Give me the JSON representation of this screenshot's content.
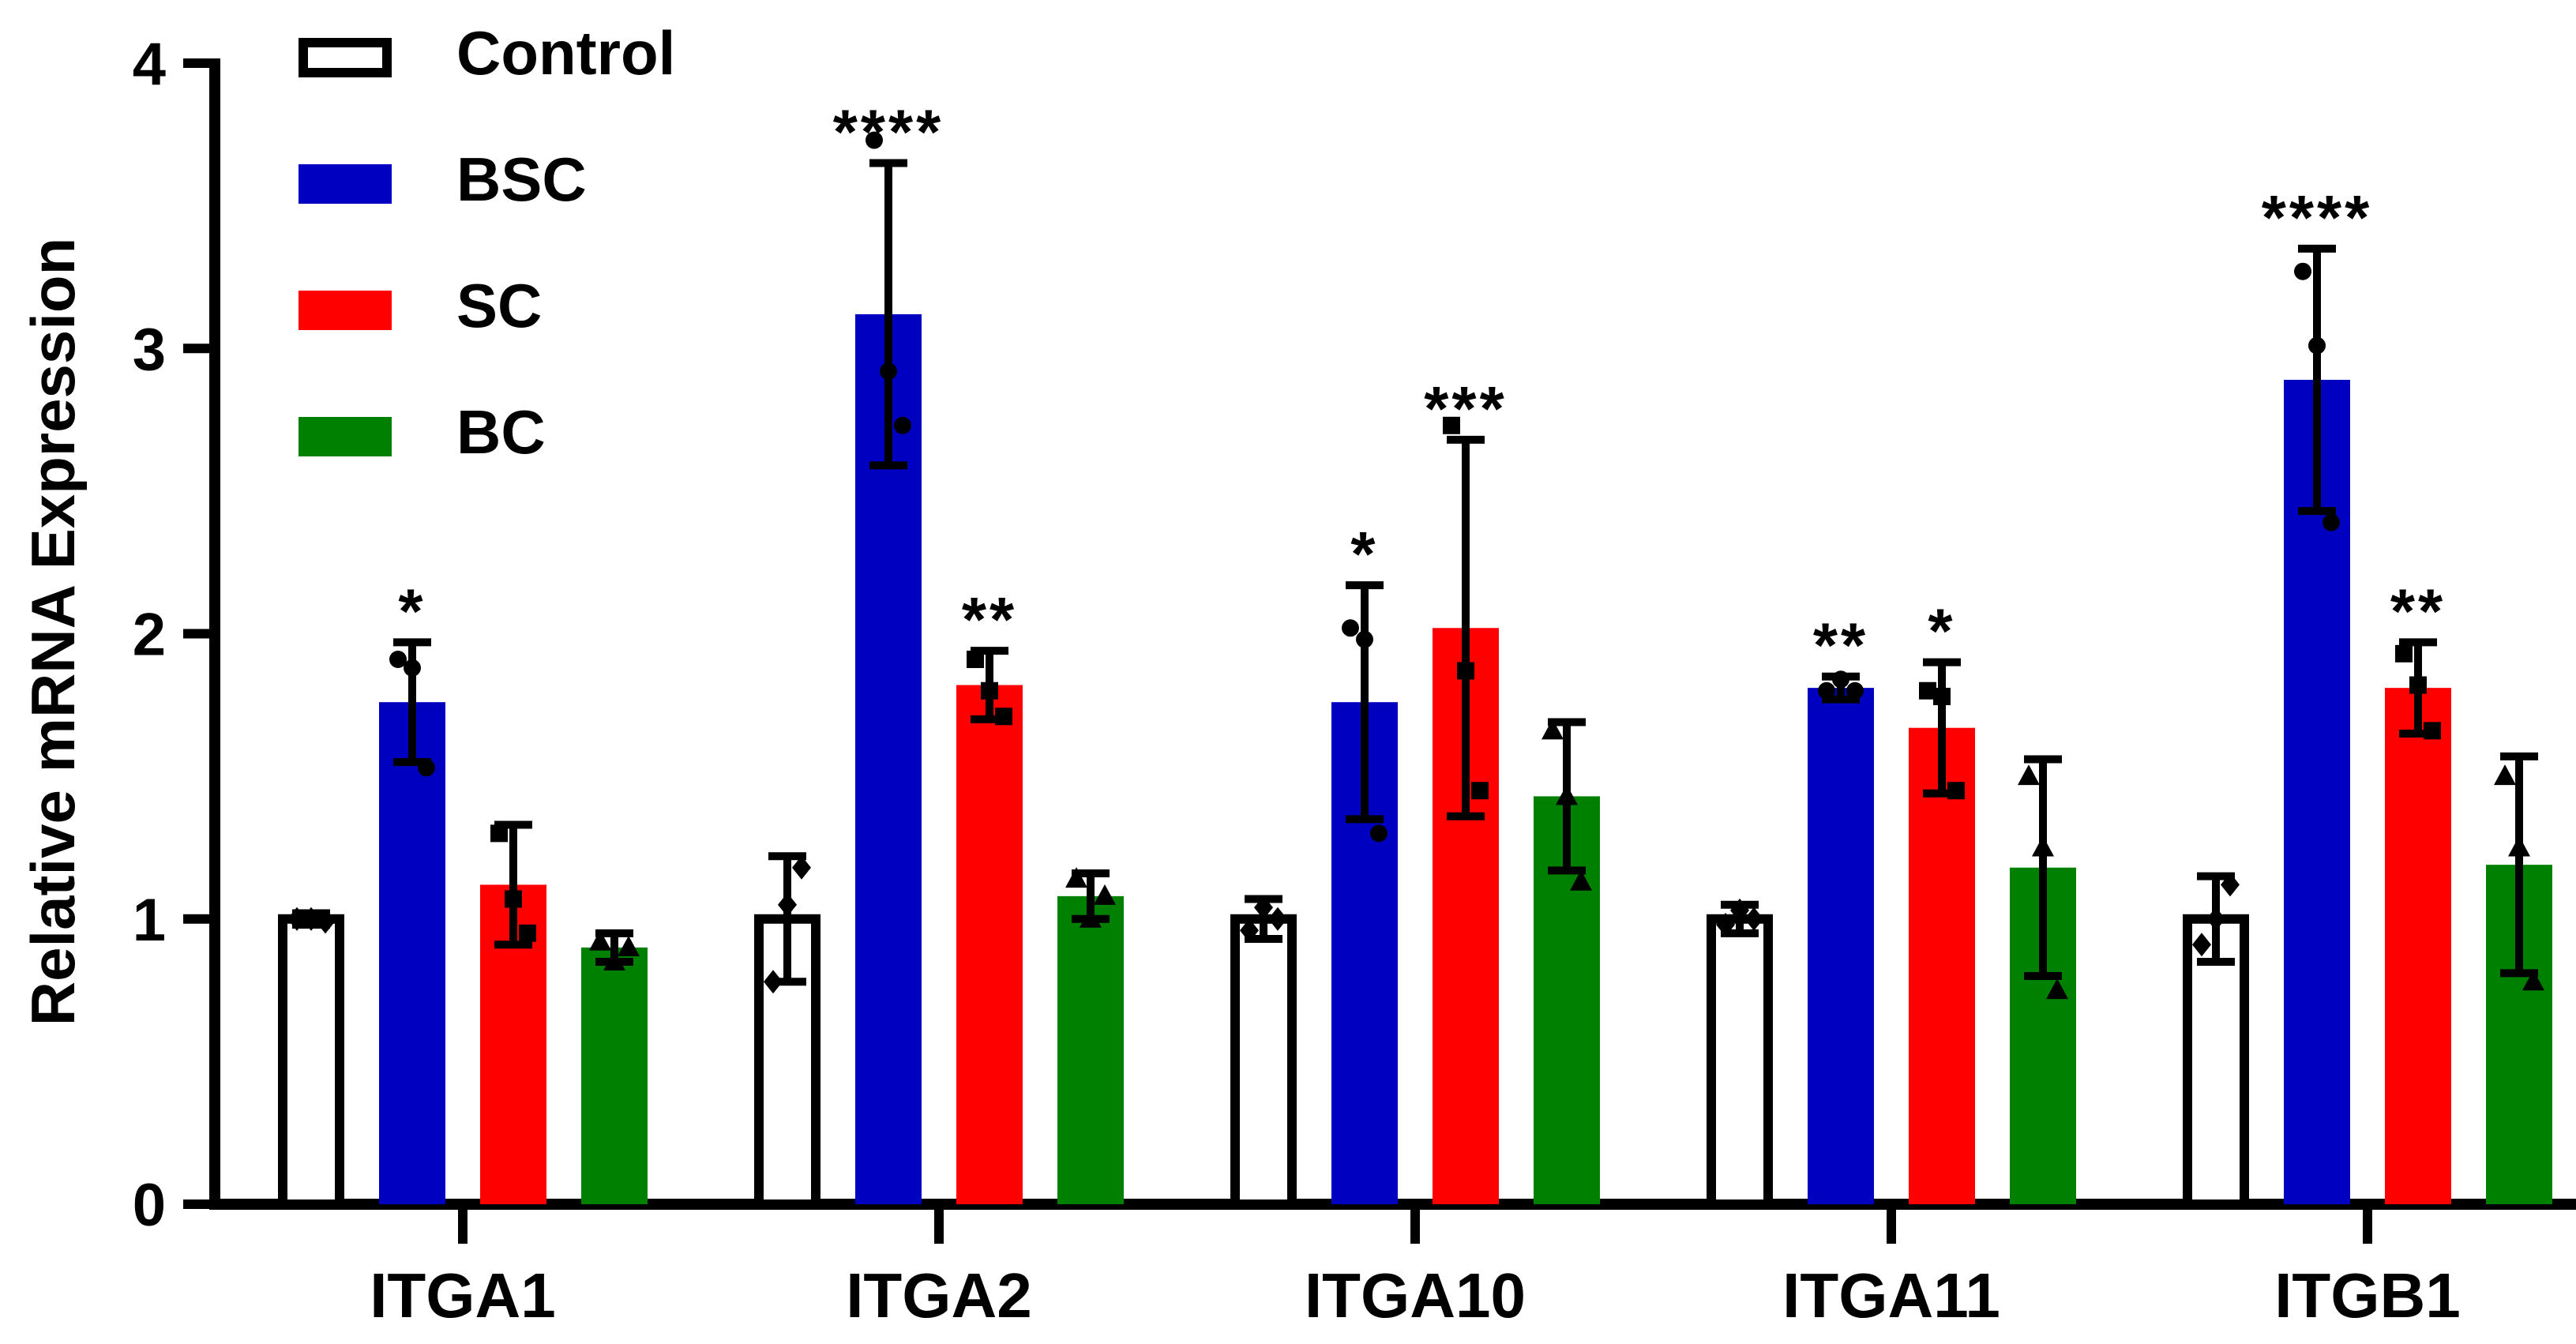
{
  "chart_data": {
    "type": "bar",
    "title": "",
    "xlabel": "",
    "ylabel": "Relative mRNA Expression",
    "ylim": [
      0,
      4
    ],
    "yticks": [
      "0",
      "1",
      "2",
      "3",
      "4"
    ],
    "grid": false,
    "legend_position": "top-left",
    "categories": [
      "ITGA1",
      "ITGA2",
      "ITGA10",
      "ITGA11",
      "ITGB1"
    ],
    "series": [
      {
        "name": "Control",
        "color": "#ffffff",
        "stroke": "#000000",
        "marker": "diamond",
        "values": [
          1.0,
          1.0,
          1.0,
          1.0,
          1.0
        ],
        "error": [
          0.02,
          0.22,
          0.07,
          0.05,
          0.15
        ],
        "points": [
          [
            1.0,
            1.0,
            0.99
          ],
          [
            0.78,
            1.05,
            1.18
          ],
          [
            0.96,
            1.04,
            1.0
          ],
          [
            0.98,
            1.03,
            1.0
          ],
          [
            0.91,
            1.0,
            1.12
          ]
        ],
        "significance": [
          "",
          "",
          "",
          "",
          ""
        ]
      },
      {
        "name": "BSC",
        "color": "#0000c0",
        "stroke": "#0000c0",
        "marker": "circle",
        "values": [
          1.76,
          3.12,
          1.76,
          1.81,
          2.89
        ],
        "error": [
          0.21,
          0.53,
          0.41,
          0.04,
          0.46
        ],
        "points": [
          [
            1.91,
            1.88,
            1.53
          ],
          [
            3.73,
            2.92,
            2.73
          ],
          [
            2.02,
            1.98,
            1.3
          ],
          [
            1.8,
            1.84,
            1.8
          ],
          [
            3.27,
            3.01,
            2.39
          ]
        ],
        "significance": [
          "*",
          "****",
          "*",
          "**",
          "****"
        ]
      },
      {
        "name": "SC",
        "color": "#ff0000",
        "stroke": "#ff0000",
        "marker": "square",
        "values": [
          1.12,
          1.82,
          2.02,
          1.67,
          1.81
        ],
        "error": [
          0.21,
          0.12,
          0.66,
          0.23,
          0.16
        ],
        "points": [
          [
            1.3,
            1.07,
            0.95
          ],
          [
            1.91,
            1.8,
            1.71
          ],
          [
            2.73,
            1.87,
            1.45
          ],
          [
            1.8,
            1.78,
            1.45
          ],
          [
            1.93,
            1.82,
            1.66
          ]
        ],
        "significance": [
          "",
          "**",
          "***",
          "*",
          "**"
        ]
      },
      {
        "name": "BC",
        "color": "#008000",
        "stroke": "#008000",
        "marker": "triangle",
        "values": [
          0.9,
          1.08,
          1.43,
          1.18,
          1.19
        ],
        "error": [
          0.05,
          0.08,
          0.26,
          0.38,
          0.38
        ],
        "points": [
          [
            0.92,
            0.85,
            0.9
          ],
          [
            1.14,
            1.0,
            1.08
          ],
          [
            1.66,
            1.43,
            1.13
          ],
          [
            1.5,
            1.25,
            0.75
          ],
          [
            1.5,
            1.25,
            0.78
          ]
        ],
        "significance": [
          "",
          "",
          "",
          "",
          ""
        ]
      }
    ]
  }
}
